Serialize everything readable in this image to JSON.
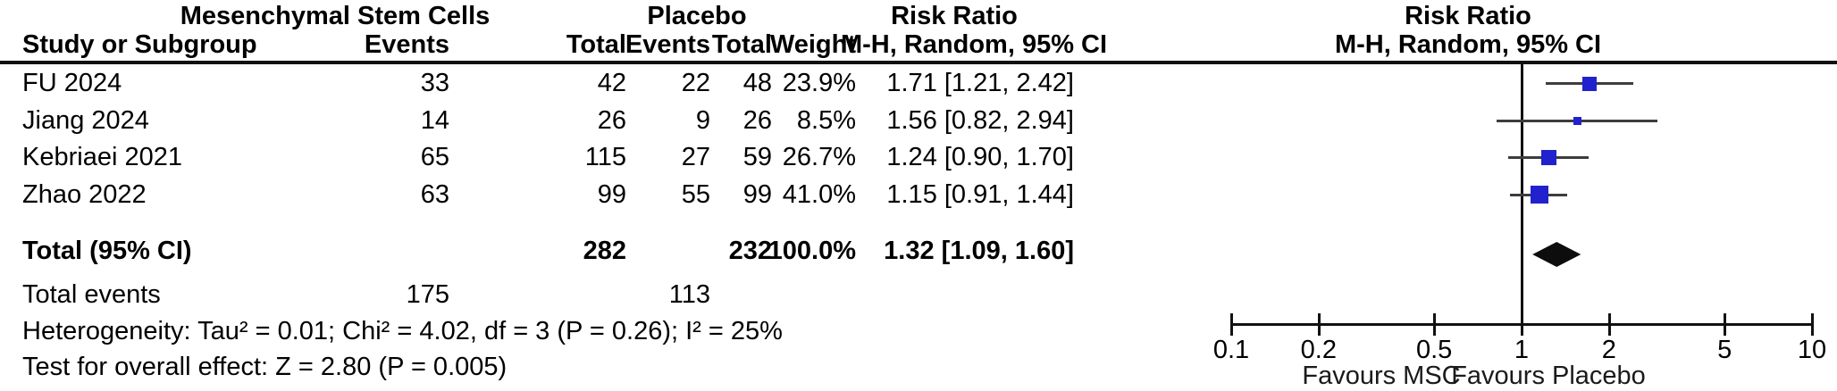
{
  "table": {
    "group_headers": {
      "msc": "Mesenchymal Stem Cells",
      "placebo": "Placebo",
      "rr_left": "Risk Ratio",
      "rr_right": "Risk Ratio"
    },
    "col_headers": {
      "study": "Study or Subgroup",
      "msc_events": "Events",
      "msc_total": "Total",
      "placebo_events": "Events",
      "placebo_total": "Total",
      "weight": "Weight",
      "mh_left": "M-H, Random, 95% CI",
      "mh_right": "M-H, Random, 95% CI"
    },
    "rows": [
      {
        "study": "FU 2024",
        "e1": "33",
        "t1": "42",
        "e2": "22",
        "t2": "48",
        "weight": "23.9%",
        "rr": "1.71 [1.21, 2.42]"
      },
      {
        "study": "Jiang 2024",
        "e1": "14",
        "t1": "26",
        "e2": "9",
        "t2": "26",
        "weight": "8.5%",
        "rr": "1.56 [0.82, 2.94]"
      },
      {
        "study": "Kebriaei 2021",
        "e1": "65",
        "t1": "115",
        "e2": "27",
        "t2": "59",
        "weight": "26.7%",
        "rr": "1.24 [0.90, 1.70]"
      },
      {
        "study": "Zhao 2022",
        "e1": "63",
        "t1": "99",
        "e2": "55",
        "t2": "99",
        "weight": "41.0%",
        "rr": "1.15 [0.91, 1.44]"
      }
    ],
    "total_row": {
      "label": "Total (95% CI)",
      "t1": "282",
      "t2": "232",
      "weight": "100.0%",
      "rr": "1.32 [1.09, 1.60]"
    },
    "total_events": {
      "label": "Total events",
      "e1": "175",
      "e2": "113"
    },
    "heterogeneity": "Heterogeneity: Tau² = 0.01; Chi² = 4.02, df = 3 (P = 0.26); I² = 25%",
    "overall_effect": "Test for overall effect: Z = 2.80 (P = 0.005)"
  },
  "chart_data": {
    "type": "forest",
    "x_scale": "log",
    "xlim": [
      0.1,
      10
    ],
    "ticks": [
      0.1,
      0.2,
      0.5,
      1,
      2,
      5,
      10
    ],
    "tick_labels": [
      "0.1",
      "0.2",
      "0.5",
      "1",
      "2",
      "5",
      "10"
    ],
    "null_line": 1,
    "effect_measure": "Risk Ratio, M-H, Random, 95% CI",
    "studies": [
      {
        "name": "FU 2024",
        "rr": 1.71,
        "ci_low": 1.21,
        "ci_high": 2.42,
        "weight": 23.9
      },
      {
        "name": "Jiang 2024",
        "rr": 1.56,
        "ci_low": 0.82,
        "ci_high": 2.94,
        "weight": 8.5
      },
      {
        "name": "Kebriaei 2021",
        "rr": 1.24,
        "ci_low": 0.9,
        "ci_high": 1.7,
        "weight": 26.7
      },
      {
        "name": "Zhao 2022",
        "rr": 1.15,
        "ci_low": 0.91,
        "ci_high": 1.44,
        "weight": 41.0
      }
    ],
    "total": {
      "rr": 1.32,
      "ci_low": 1.09,
      "ci_high": 1.6
    },
    "favours_left": "Favours MSC",
    "favours_right": "Favours Placebo",
    "marker_color": "#2121CE",
    "diamond_color": "#0d0d0d"
  }
}
